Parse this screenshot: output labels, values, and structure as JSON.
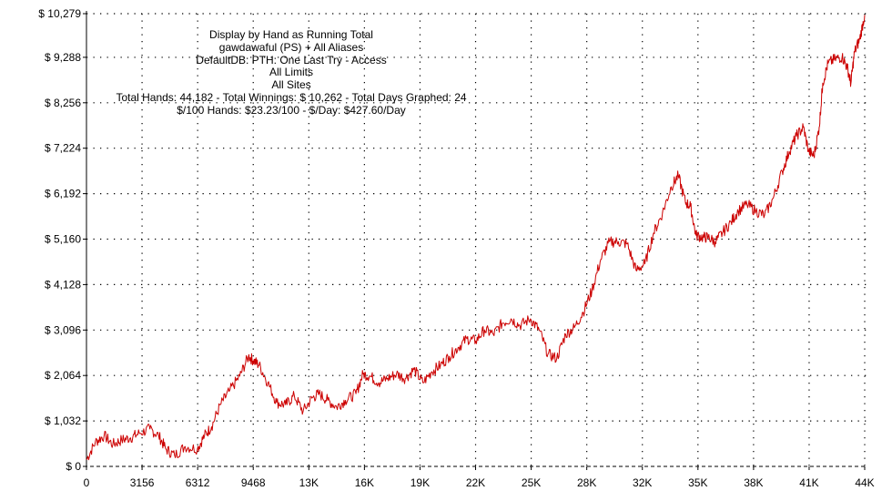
{
  "info": {
    "lines": [
      "Display by Hand as Running Total",
      "gawdawaful (PS) + All Aliases",
      "DefaultDB: PTH: One Last Try - Access",
      "All Limits",
      "All Sites",
      "Total Hands: 44,182 - Total Winnings: $ 10,262 - Total Days Graphed: 24",
      "$/100 Hands: $23.23/100 - $/Day: $427.60/Day"
    ]
  },
  "colors": {
    "line": "#cc0000",
    "grid": "#000000",
    "background": "#ffffff"
  },
  "chart_data": {
    "type": "line",
    "title": "",
    "xlabel": "",
    "ylabel": "",
    "grid": true,
    "xlim": [
      0,
      44182
    ],
    "ylim": [
      0,
      10279
    ],
    "x_ticks": [
      0,
      3156,
      6312,
      9468,
      12624,
      15780,
      18936,
      22092,
      25248,
      28404,
      31560,
      34716,
      37872,
      41028,
      44182
    ],
    "x_tick_labels": [
      "0",
      "3156",
      "6312",
      "9468",
      "13K",
      "16K",
      "19K",
      "22K",
      "25K",
      "28K",
      "32K",
      "35K",
      "38K",
      "41K",
      "44K"
    ],
    "y_ticks": [
      0,
      1032,
      2064,
      3096,
      4128,
      5160,
      6192,
      7224,
      8256,
      9288,
      10279
    ],
    "y_tick_labels": [
      "$ 0",
      "$ 1,032",
      "$ 2,064",
      "$ 3,096",
      "$ 4,128",
      "$ 5,160",
      "$ 6,192",
      "$ 7,224",
      "$ 8,256",
      "$ 9,288",
      "$ 10,279"
    ],
    "series": [
      {
        "x": [
          0,
          500,
          1000,
          1500,
          2000,
          2500,
          3000,
          3600,
          4100,
          4500,
          5000,
          5600,
          6300,
          6700,
          7100,
          7600,
          8100,
          8700,
          9200,
          9500,
          9800,
          10300,
          10800,
          11300,
          11800,
          12300,
          12800,
          13200,
          13700,
          14200,
          14700,
          15300,
          15700,
          16100,
          16600,
          17100,
          17600,
          18100,
          18600,
          19100,
          19600,
          20100,
          20600,
          21100,
          21600,
          22100,
          22600,
          23100,
          23600,
          24100,
          24600,
          25200,
          25700,
          26200,
          26700,
          27200,
          27700,
          28200,
          28700,
          29200,
          29700,
          30200,
          30700,
          31200,
          31700,
          32200,
          32700,
          33200,
          33600,
          34000,
          34300,
          34600,
          35000,
          35300,
          35700,
          36100,
          36600,
          37000,
          37500,
          38000,
          38500,
          39000,
          39500,
          39900,
          40300,
          40700,
          41000,
          41300,
          41600,
          41800,
          42100,
          42500,
          42900,
          43200,
          43400,
          43600,
          43900,
          44182
        ],
        "y": [
          150,
          550,
          700,
          500,
          600,
          650,
          750,
          850,
          700,
          400,
          250,
          450,
          400,
          700,
          900,
          1400,
          1700,
          2050,
          2500,
          2400,
          2300,
          1900,
          1450,
          1400,
          1600,
          1250,
          1550,
          1650,
          1500,
          1350,
          1500,
          1650,
          2100,
          2050,
          1900,
          2000,
          2100,
          2000,
          2200,
          1900,
          2150,
          2300,
          2500,
          2700,
          2900,
          2850,
          3100,
          3000,
          3250,
          3350,
          3200,
          3350,
          3100,
          2550,
          2450,
          3000,
          3150,
          3500,
          4000,
          4700,
          5100,
          5100,
          5050,
          4450,
          4600,
          5300,
          5750,
          6350,
          6600,
          6000,
          5900,
          5250,
          5200,
          5200,
          5100,
          5300,
          5550,
          5800,
          5950,
          5800,
          5700,
          6100,
          6700,
          7150,
          7500,
          7700,
          7150,
          7050,
          7700,
          8700,
          9150,
          9250,
          9300,
          9050,
          8700,
          9400,
          9700,
          10250
        ]
      }
    ]
  }
}
